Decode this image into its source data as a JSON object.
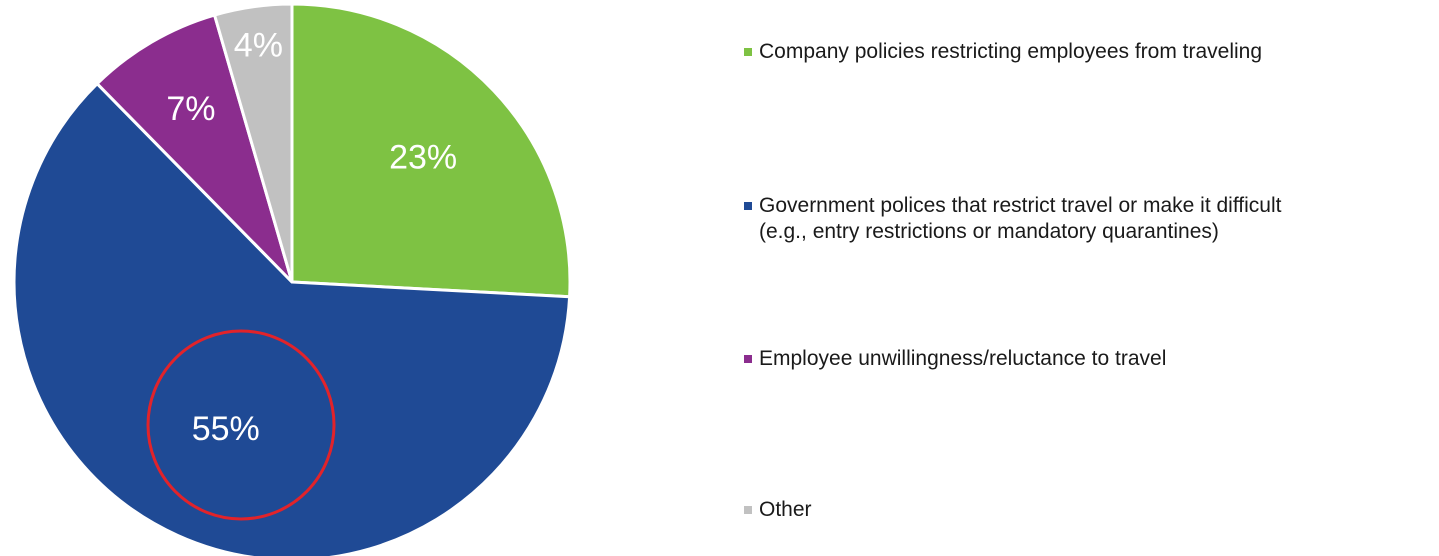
{
  "chart_data": {
    "type": "pie",
    "slices": [
      {
        "name": "Company policies restricting employees from traveling",
        "value": 23,
        "label": "23%",
        "color": "#7ec243"
      },
      {
        "name": "Government polices that restrict travel or make it difficult\n(e.g., entry restrictions or mandatory quarantines)",
        "value": 55,
        "label": "55%",
        "color": "#1f4a95"
      },
      {
        "name": "Employee unwillingness/reluctance to travel",
        "value": 7,
        "label": "7%",
        "color": "#8b2d8e"
      },
      {
        "name": "Other",
        "value": 4,
        "label": "4%",
        "color": "#c1c1c1"
      }
    ],
    "start": "12 o'clock",
    "direction": "clockwise",
    "legend_position": "right",
    "highlight": {
      "slice": "55%",
      "shape": "ellipse",
      "color": "#e2232a"
    }
  }
}
